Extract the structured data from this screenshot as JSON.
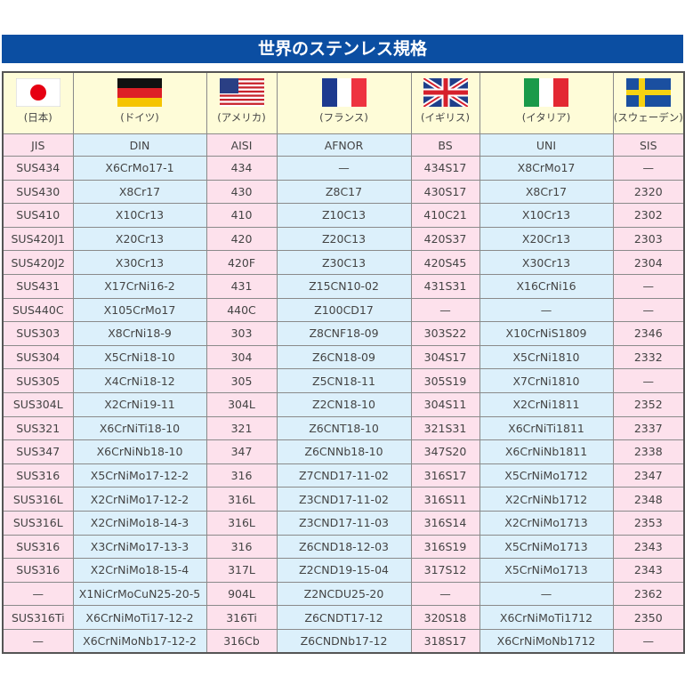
{
  "title": "世界のステンレス規格",
  "colors": {
    "title_bg": "#0b4ea2",
    "pink": "#fde1ec",
    "blue": "#dcf0fb",
    "header_bg": "#fefcd8"
  },
  "countries": [
    {
      "flag": "japan-flag",
      "label": "(日本)"
    },
    {
      "flag": "germany-flag",
      "label": "(ドイツ)"
    },
    {
      "flag": "usa-flag",
      "label": "(アメリカ)"
    },
    {
      "flag": "france-flag",
      "label": "(フランス)"
    },
    {
      "flag": "uk-flag",
      "label": "(イギリス)"
    },
    {
      "flag": "italy-flag",
      "label": "(イタリア)"
    },
    {
      "flag": "sweden-flag",
      "label": "(スウェーデン)"
    }
  ],
  "standards": [
    "JIS",
    "DIN",
    "AISI",
    "AFNOR",
    "BS",
    "UNI",
    "SIS"
  ],
  "rows": [
    [
      "SUS434",
      "X6CrMo17-1",
      "434",
      "—",
      "434S17",
      "X8CrMo17",
      "—"
    ],
    [
      "SUS430",
      "X8Cr17",
      "430",
      "Z8C17",
      "430S17",
      "X8Cr17",
      "2320"
    ],
    [
      "SUS410",
      "X10Cr13",
      "410",
      "Z10C13",
      "410C21",
      "X10Cr13",
      "2302"
    ],
    [
      "SUS420J1",
      "X20Cr13",
      "420",
      "Z20C13",
      "420S37",
      "X20Cr13",
      "2303"
    ],
    [
      "SUS420J2",
      "X30Cr13",
      "420F",
      "Z30C13",
      "420S45",
      "X30Cr13",
      "2304"
    ],
    [
      "SUS431",
      "X17CrNi16-2",
      "431",
      "Z15CN10-02",
      "431S31",
      "X16CrNi16",
      "—"
    ],
    [
      "SUS440C",
      "X105CrMo17",
      "440C",
      "Z100CD17",
      "—",
      "—",
      "—"
    ],
    [
      "SUS303",
      "X8CrNi18-9",
      "303",
      "Z8CNF18-09",
      "303S22",
      "X10CrNiS1809",
      "2346"
    ],
    [
      "SUS304",
      "X5CrNi18-10",
      "304",
      "Z6CN18-09",
      "304S17",
      "X5CrNi1810",
      "2332"
    ],
    [
      "SUS305",
      "X4CrNi18-12",
      "305",
      "Z5CN18-11",
      "305S19",
      "X7CrNi1810",
      "—"
    ],
    [
      "SUS304L",
      "X2CrNi19-11",
      "304L",
      "Z2CN18-10",
      "304S11",
      "X2CrNi1811",
      "2352"
    ],
    [
      "SUS321",
      "X6CrNiTi18-10",
      "321",
      "Z6CNT18-10",
      "321S31",
      "X6CrNiTi1811",
      "2337"
    ],
    [
      "SUS347",
      "X6CrNiNb18-10",
      "347",
      "Z6CNNb18-10",
      "347S20",
      "X6CrNiNb1811",
      "2338"
    ],
    [
      "SUS316",
      "X5CrNiMo17-12-2",
      "316",
      "Z7CND17-11-02",
      "316S17",
      "X5CrNiMo1712",
      "2347"
    ],
    [
      "SUS316L",
      "X2CrNiMo17-12-2",
      "316L",
      "Z3CND17-11-02",
      "316S11",
      "X2CrNiNb1712",
      "2348"
    ],
    [
      "SUS316L",
      "X2CrNiMo18-14-3",
      "316L",
      "Z3CND17-11-03",
      "316S14",
      "X2CrNiMo1713",
      "2353"
    ],
    [
      "SUS316",
      "X3CrNiMo17-13-3",
      "316",
      "Z6CND18-12-03",
      "316S19",
      "X5CrNiMo1713",
      "2343"
    ],
    [
      "SUS316",
      "X2CrNiMo18-15-4",
      "317L",
      "Z2CND19-15-04",
      "317S12",
      "X5CrNiMo1713",
      "2343"
    ],
    [
      "—",
      "X1NiCrMoCuN25-20-5",
      "904L",
      "Z2NCDU25-20",
      "—",
      "—",
      "2362"
    ],
    [
      "SUS316Ti",
      "X6CrNiMoTi17-12-2",
      "316Ti",
      "Z6CNDT17-12",
      "320S18",
      "X6CrNiMoTi1712",
      "2350"
    ],
    [
      "—",
      "X6CrNiMoNb17-12-2",
      "316Cb",
      "Z6CNDNb17-12",
      "318S17",
      "X6CrNiMoNb1712",
      "—"
    ]
  ]
}
